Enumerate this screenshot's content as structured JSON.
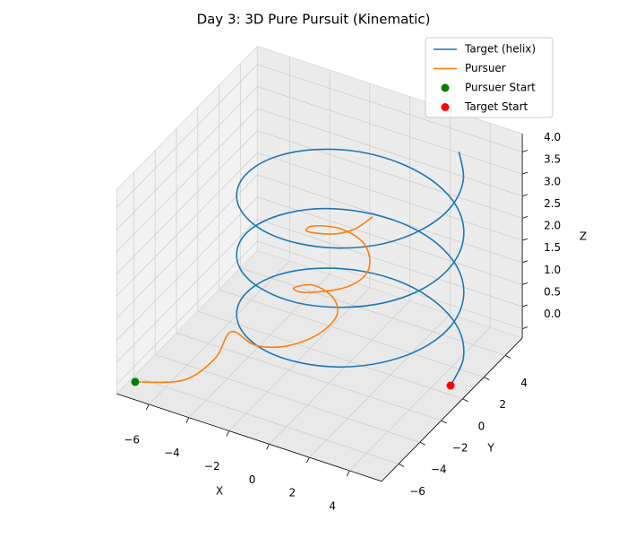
{
  "chart_data": {
    "type": "line3d",
    "title": "Day 3: 3D Pure Pursuit (Kinematic)",
    "x_label": "X",
    "y_label": "Y",
    "z_label": "Z",
    "xlim": [
      -7.6,
      5.6
    ],
    "ylim": [
      -7.6,
      5.6
    ],
    "zlim": [
      -0.21,
      4.41
    ],
    "xticks": [
      {
        "value": -6,
        "label": "−6"
      },
      {
        "value": -4,
        "label": "−4"
      },
      {
        "value": -2,
        "label": "−2"
      },
      0,
      2,
      4
    ],
    "yticks": [
      {
        "value": -6,
        "label": "−6"
      },
      {
        "value": -4,
        "label": "−4"
      },
      {
        "value": -2,
        "label": "−2"
      },
      0,
      2,
      4
    ],
    "zticks": [
      {
        "value": 0,
        "label": "0.0"
      },
      0.5,
      {
        "value": 1,
        "label": "1.0"
      },
      1.5,
      {
        "value": 2,
        "label": "2.0"
      },
      2.5,
      {
        "value": 3,
        "label": "3.0"
      },
      3.5,
      {
        "value": 4,
        "label": "4.0"
      }
    ],
    "grid": true,
    "legend_loc": "upper right",
    "series": [
      {
        "name": "Target (helix)",
        "color": "#1f77b4",
        "x": [
          5,
          4.62,
          3.54,
          1.91,
          0,
          -1.91,
          -3.54,
          -4.62,
          -5,
          -4.62,
          -3.54,
          -1.91,
          0,
          1.91,
          3.54,
          4.62,
          5,
          4.62,
          3.54,
          1.91,
          0,
          -1.91,
          -3.54,
          -4.62,
          -5,
          -4.62,
          -3.54,
          -1.91,
          0,
          1.91,
          3.54,
          4.62,
          5,
          4.62,
          3.54,
          1.91,
          0,
          -1.91,
          -3.54,
          -4.62,
          -5,
          -4.62,
          -3.54,
          -1.91,
          0,
          1.91,
          3.54,
          4.62,
          5,
          4.62,
          3.54
        ],
        "y": [
          0,
          1.91,
          3.54,
          4.62,
          5,
          4.62,
          3.54,
          1.91,
          0,
          -1.91,
          -3.54,
          -4.62,
          -5,
          -4.62,
          -3.54,
          -1.91,
          0,
          1.91,
          3.54,
          4.62,
          5,
          4.62,
          3.54,
          1.91,
          0,
          -1.91,
          -3.54,
          -4.62,
          -5,
          -4.62,
          -3.54,
          -1.91,
          0,
          1.91,
          3.54,
          4.62,
          5,
          4.62,
          3.54,
          1.91,
          0,
          -1.91,
          -3.54,
          -4.62,
          -5,
          -4.62,
          -3.54,
          -1.91,
          0,
          1.91,
          3.54
        ],
        "z": [
          0,
          0.08,
          0.17,
          0.25,
          0.34,
          0.42,
          0.5,
          0.59,
          0.67,
          0.76,
          0.84,
          0.92,
          1.01,
          1.09,
          1.18,
          1.26,
          1.34,
          1.43,
          1.51,
          1.6,
          1.68,
          1.76,
          1.85,
          1.93,
          2.02,
          2.1,
          2.18,
          2.27,
          2.35,
          2.44,
          2.52,
          2.6,
          2.69,
          2.77,
          2.86,
          2.94,
          3.02,
          3.11,
          3.19,
          3.28,
          3.36,
          3.44,
          3.53,
          3.61,
          3.7,
          3.78,
          3.86,
          3.95,
          4.03,
          4.12,
          4.2
        ]
      },
      {
        "name": "Pursuer",
        "color": "#ff7f0e",
        "x": [
          -7,
          -5.08,
          -4.37,
          -4.26,
          -2.7,
          -1.32,
          -0.41,
          -0.23,
          -0.87,
          -1.91,
          -2.38,
          -1.73,
          -0.35,
          0.25,
          0.17,
          -0.58,
          -1.68,
          -2.62,
          -2.58,
          -1.4,
          -0.57,
          -0.08
        ],
        "y": [
          -7,
          -6.07,
          -4.47,
          -3.15,
          -3.84,
          -3.48,
          -2.26,
          -0.83,
          0.03,
          0.14,
          -0.81,
          -1.03,
          -0.26,
          0.7,
          1.53,
          2.27,
          2.23,
          1.5,
          0.82,
          0.88,
          1.4,
          2.25
        ],
        "z": [
          0,
          0.1,
          0.3,
          0.6,
          0.7,
          0.8,
          0.9,
          1,
          1.1,
          1.2,
          1.3,
          1.35,
          1.45,
          1.55,
          1.7,
          1.85,
          2,
          2.1,
          2.15,
          2.25,
          2.35,
          2.5
        ]
      }
    ],
    "points": [
      {
        "name": "Pursuer Start",
        "color": "green",
        "x": -7,
        "y": -7,
        "z": 0
      },
      {
        "name": "Target Start",
        "color": "red",
        "x": 5,
        "y": 0,
        "z": 0
      }
    ]
  }
}
